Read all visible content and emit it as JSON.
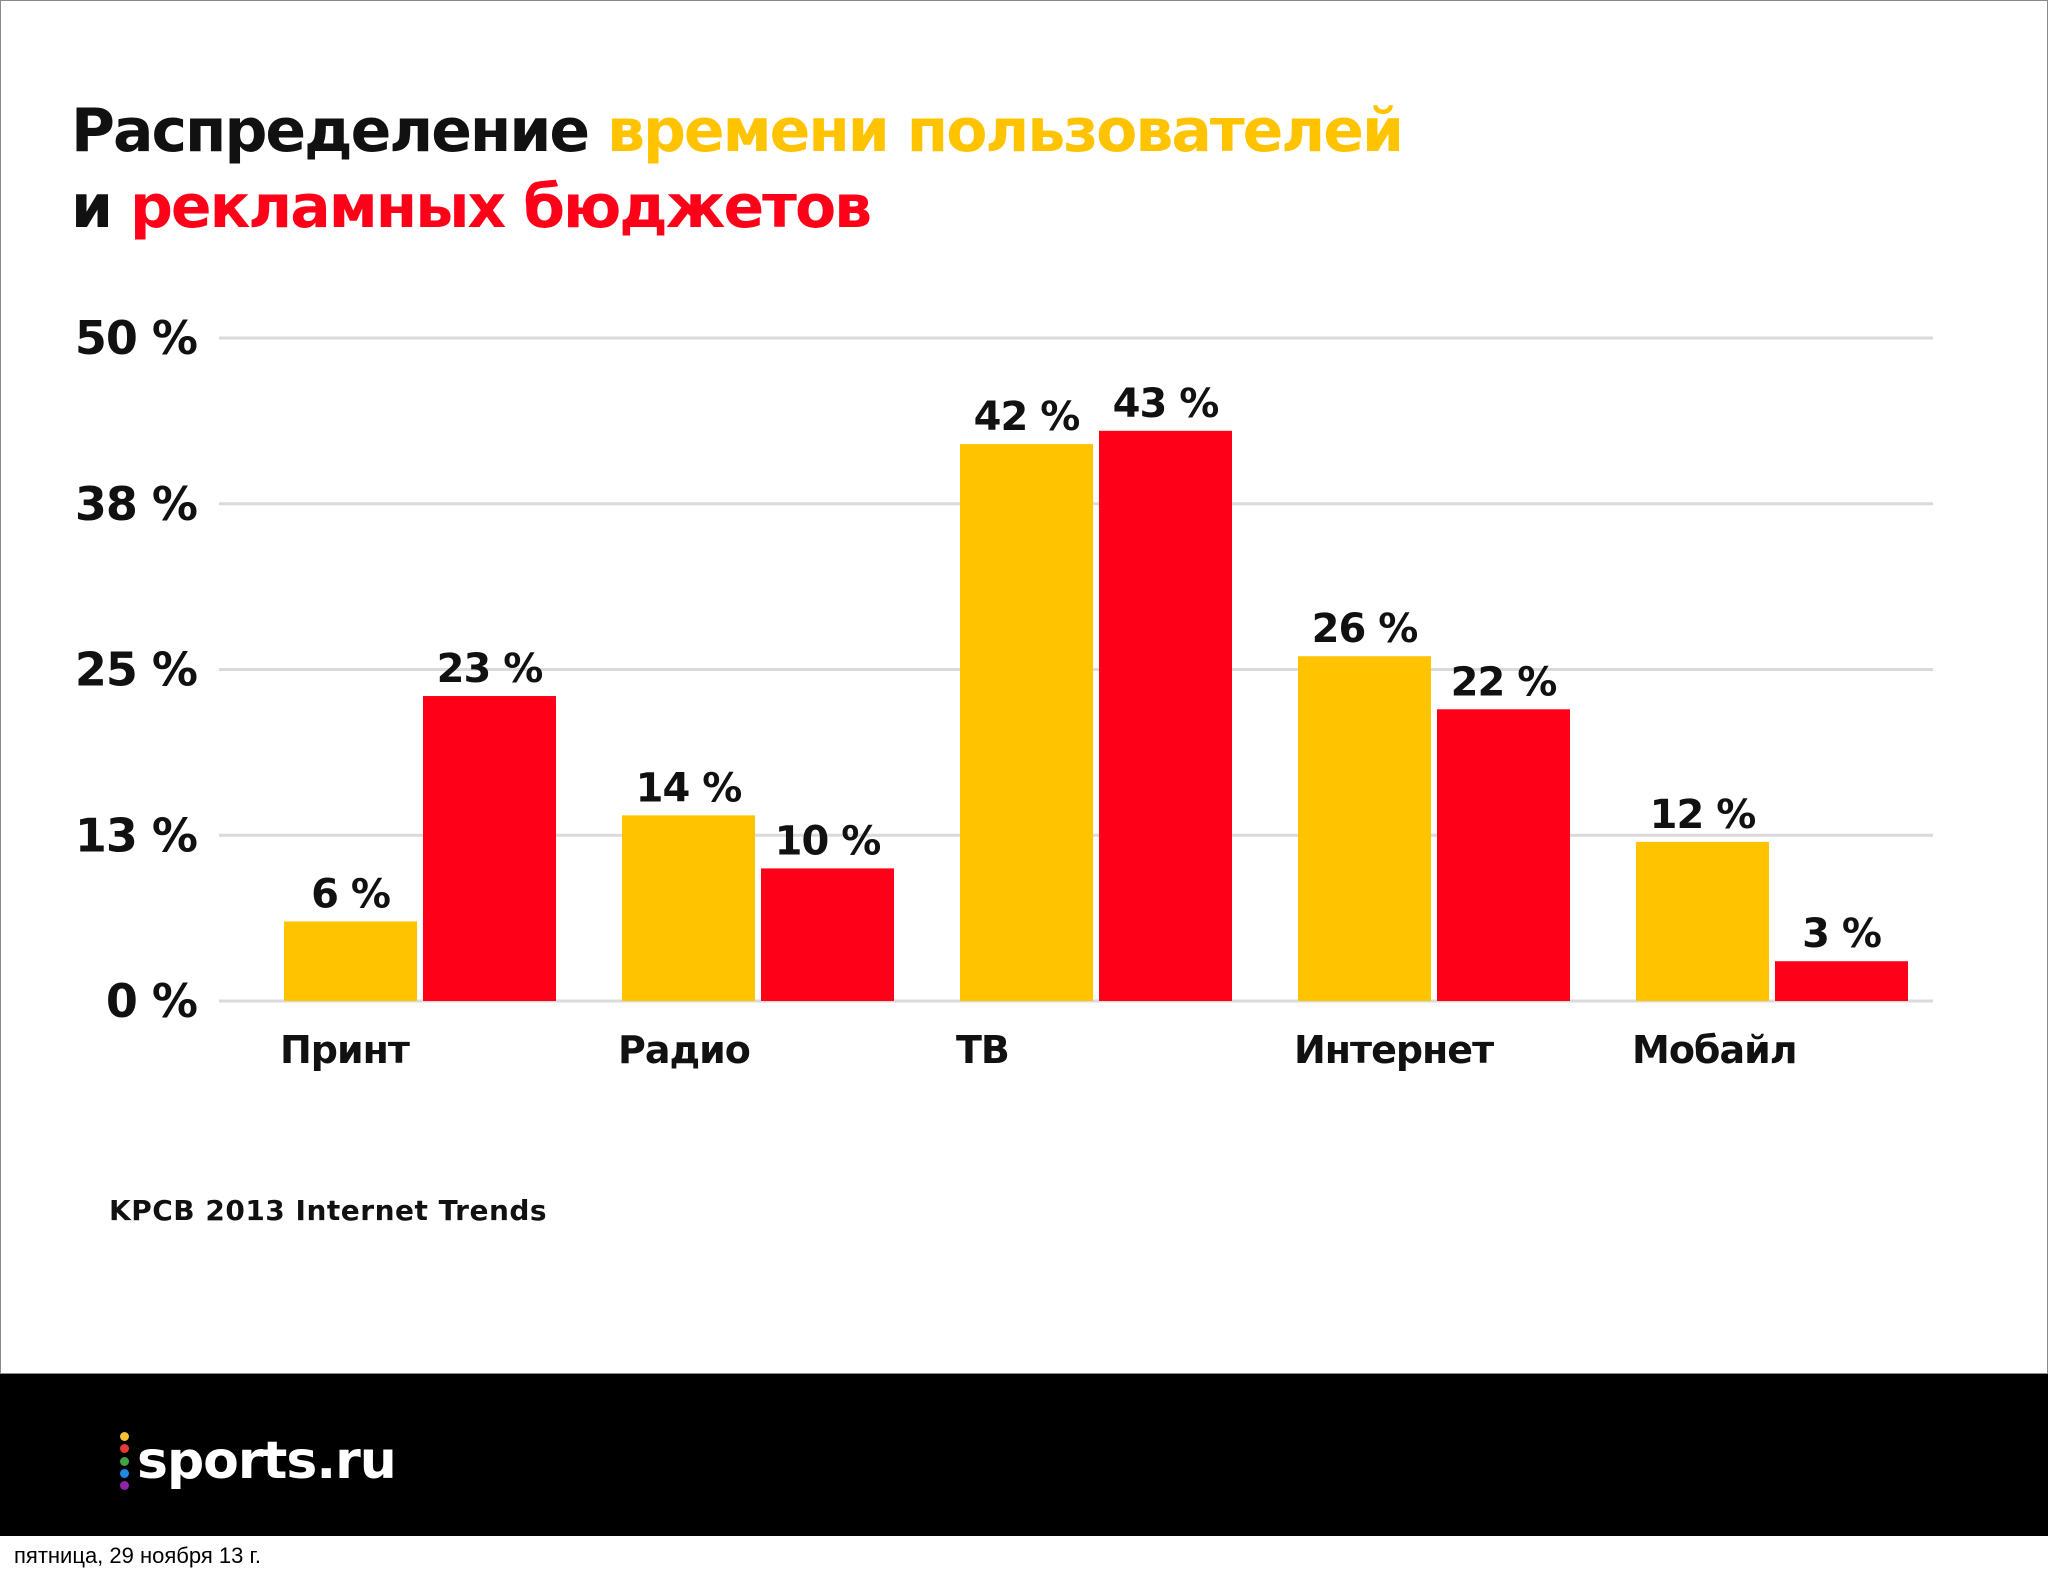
{
  "title": {
    "line1": {
      "part1": "Распределение ",
      "part2": "времени пользователей"
    },
    "line2": {
      "part1": "и ",
      "part2": "рекламных бюджетов"
    }
  },
  "colors": {
    "dark": "#111111",
    "yellow": "#ffc300",
    "red": "#ff0019",
    "grid": "#dadada"
  },
  "chart_data": {
    "type": "bar",
    "categories": [
      "Принт",
      "Радио",
      "ТВ",
      "Интернет",
      "Мобайл"
    ],
    "series": [
      {
        "values": [
          6,
          14,
          42,
          26,
          12
        ],
        "color": "#ffc300"
      },
      {
        "values": [
          23,
          10,
          43,
          22,
          3
        ],
        "color": "#ff0019"
      }
    ],
    "data_labels": [
      [
        "6 %",
        "14 %",
        "42 %",
        "26 %",
        "12 %"
      ],
      [
        "23 %",
        "10 %",
        "43 %",
        "22 %",
        "3 %"
      ]
    ],
    "yticks": [
      0,
      12.5,
      25,
      37.5,
      50
    ],
    "ytick_labels": [
      "0 %",
      "13 %",
      "25 %",
      "38 %",
      "50 %"
    ],
    "ylim": [
      0,
      50
    ],
    "grid": true
  },
  "source": "KPCB 2013 Internet Trends",
  "footer": {
    "logo_text": "sports.ru",
    "logo_dot_colors": [
      "#f4c430",
      "#e53935",
      "#43a047",
      "#1e88e5",
      "#8e24aa"
    ]
  },
  "date": "пятница, 29 ноября 13 г."
}
